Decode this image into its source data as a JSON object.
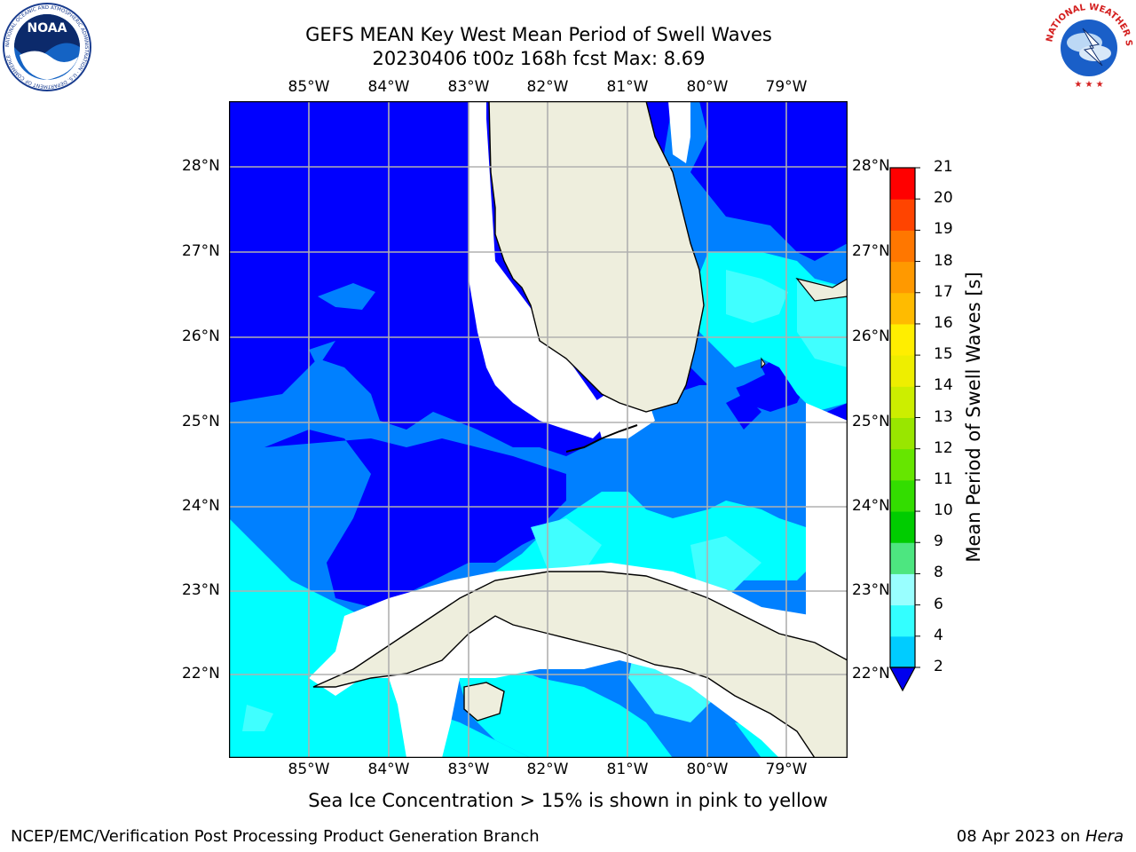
{
  "title": {
    "line1": "GEFS MEAN Key West Mean Period of Swell Waves",
    "line2": "20230406 t00z 168h fcst   Max: 8.69"
  },
  "map": {
    "lon_ticks": [
      "85°W",
      "84°W",
      "83°W",
      "82°W",
      "81°W",
      "80°W",
      "79°W"
    ],
    "lat_ticks": [
      "28°N",
      "27°N",
      "26°N",
      "25°N",
      "24°N",
      "23°N",
      "22°N"
    ],
    "extent": {
      "lon": [
        -86.0,
        -78.25
      ],
      "lat": [
        21.0,
        28.75
      ]
    },
    "colors": {
      "land": "#eeeedd",
      "lev_2_4": "#0000ff",
      "lev_4_6": "#0080ff",
      "lev_6_8": "#00ffff",
      "lev_8_10": "#40ffff",
      "masked": "#ffffff",
      "grid": "#b0b0b0"
    }
  },
  "colorbar": {
    "label": "Mean Period of Swell Waves [s]",
    "ticks": [
      "2",
      "4",
      "6",
      "8",
      "9",
      "10",
      "11",
      "12",
      "13",
      "14",
      "15",
      "16",
      "17",
      "18",
      "19",
      "20",
      "21"
    ],
    "colors": [
      "#0066ff",
      "#00ccff",
      "#33ffff",
      "#99ffff",
      "#4de680",
      "#00cc00",
      "#33dd00",
      "#66e600",
      "#99e600",
      "#ccee00",
      "#eeee00",
      "#ffee00",
      "#ffbb00",
      "#ff9900",
      "#ff7700",
      "#ff4400",
      "#ff0000"
    ],
    "extend_color": "#0000ee"
  },
  "note": "Sea Ice Concentration > 15% is shown in pink to yellow",
  "footer": {
    "left": "NCEP/EMC/Verification Post Processing Product Generation Branch",
    "date": "08 Apr 2023 on ",
    "machine": "Hera"
  },
  "logos": {
    "noaa_text": "NOAA",
    "noaa_ring_text": "NATIONAL OCEANIC AND ATMOSPHERIC ADMINISTRATION · U.S. DEPARTMENT OF COMMERCE",
    "nws_ring_text": "NATIONAL WEATHER SERVICE"
  }
}
